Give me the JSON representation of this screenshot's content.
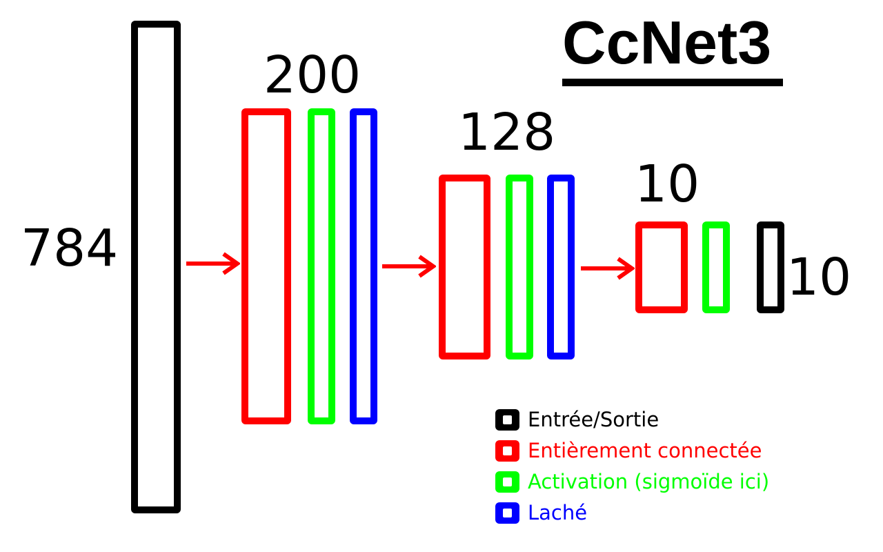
{
  "title": "CcNet3",
  "layer_sizes": {
    "input": "784",
    "hidden1": "200",
    "hidden2": "128",
    "output_linear": "10",
    "output": "10"
  },
  "colors": {
    "io": "#000000",
    "fully_connected": "#ff0000",
    "activation": "#00ff00",
    "dropout": "#0000ff",
    "arrow": "#ff0000"
  },
  "legend": [
    {
      "label": "Entrée/Sortie",
      "color": "#000000"
    },
    {
      "label": "Entièrement connectée",
      "color": "#ff0000"
    },
    {
      "label": "Activation (sigmoïde ici)",
      "color": "#00ff00"
    },
    {
      "label": "Laché",
      "color": "#0000ff"
    }
  ]
}
